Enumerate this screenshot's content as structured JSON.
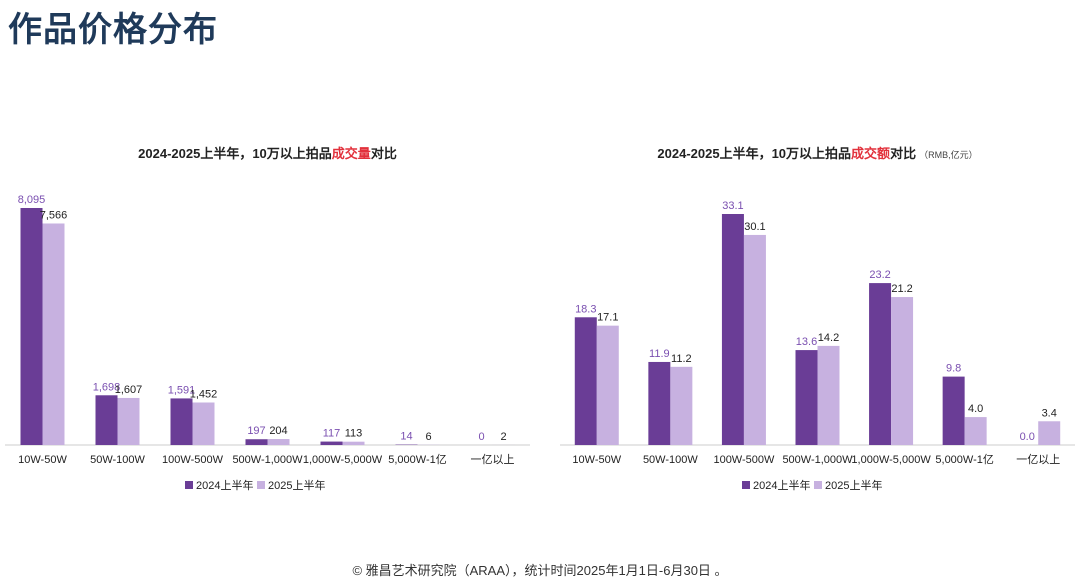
{
  "page": {
    "title": "作品价格分布",
    "footer": "© 雅昌艺术研究院（ARAA），统计时间2025年1月1日-6月30日 。"
  },
  "colors": {
    "series_2024": "#6a3d96",
    "series_2025": "#c7b1e0",
    "label_2024": "#7a4fb0",
    "label_2025": "#222222",
    "title_highlight": "#e2313c",
    "axis": "#cccccc"
  },
  "chart_data": [
    {
      "type": "bar",
      "title_prefix": "2024-2025上半年，10万以上拍品",
      "title_highlight": "成交量",
      "title_suffix": "对比",
      "unit": "",
      "categories": [
        "10W-50W",
        "50W-100W",
        "100W-500W",
        "500W-1,000W",
        "1,000W-5,000W",
        "5,000W-1亿",
        "一亿以上"
      ],
      "series": [
        {
          "name": "2024上半年",
          "values": [
            8095,
            1698,
            1591,
            197,
            117,
            14,
            0
          ],
          "labels": [
            "8,095",
            "1,698",
            "1,591",
            "197",
            "117",
            "14",
            "0"
          ]
        },
        {
          "name": "2025上半年",
          "values": [
            7566,
            1607,
            1452,
            204,
            113,
            6,
            2
          ],
          "labels": [
            "7,566",
            "1,607",
            "1,452",
            "204",
            "113",
            "6",
            "2"
          ]
        }
      ],
      "ylim": [
        0,
        8095
      ],
      "legend": "bottom"
    },
    {
      "type": "bar",
      "title_prefix": "2024-2025上半年，10万以上拍品",
      "title_highlight": "成交额",
      "title_suffix": "对比",
      "unit": "（RMB,亿元）",
      "categories": [
        "10W-50W",
        "50W-100W",
        "100W-500W",
        "500W-1,000W",
        "1,000W-5,000W",
        "5,000W-1亿",
        "一亿以上"
      ],
      "series": [
        {
          "name": "2024上半年",
          "values": [
            18.3,
            11.9,
            33.1,
            13.6,
            23.2,
            9.8,
            0.0
          ],
          "labels": [
            "18.3",
            "11.9",
            "33.1",
            "13.6",
            "23.2",
            "9.8",
            "0.0"
          ]
        },
        {
          "name": "2025上半年",
          "values": [
            17.1,
            11.2,
            30.1,
            14.2,
            21.2,
            4.0,
            3.4
          ],
          "labels": [
            "17.1",
            "11.2",
            "30.1",
            "14.2",
            "21.2",
            "4.0",
            "3.4"
          ]
        }
      ],
      "ylim": [
        0,
        33.1
      ],
      "legend": "bottom"
    }
  ]
}
